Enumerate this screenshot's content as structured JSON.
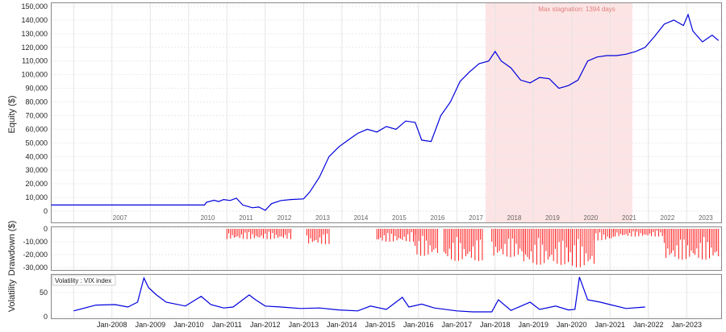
{
  "chart_data": [
    {
      "type": "line",
      "ylabel": "Equity ($)",
      "ylim": [
        0,
        150000
      ],
      "y_ticks": [
        "150,000",
        "140,000",
        "130,000",
        "120,000",
        "110,000",
        "100,000",
        "90,000",
        "80,000",
        "70,000",
        "60,000",
        "50,000",
        "40,000",
        "30,000",
        "20,000",
        "10,000",
        "0"
      ],
      "year_labels": [
        "2007",
        "2010",
        "2011",
        "2012",
        "2013",
        "2014",
        "2015",
        "2016",
        "2017",
        "2018",
        "2019",
        "2020",
        "2021",
        "2022",
        "2023"
      ],
      "annotation": "Max stagnation: 1394 days",
      "stagnation_period": [
        "2017-10-01",
        "2021-08-01"
      ],
      "grid": true,
      "series": [
        {
          "color": "#0000dd",
          "points": [
            [
              "2006-06-01",
              4500
            ],
            [
              "2010-06-01",
              4500
            ],
            [
              "2010-06-20",
              6500
            ],
            [
              "2010-09-01",
              8000
            ],
            [
              "2010-10-15",
              7000
            ],
            [
              "2010-12-01",
              8500
            ],
            [
              "2011-02-01",
              7800
            ],
            [
              "2011-04-01",
              9500
            ],
            [
              "2011-06-01",
              4500
            ],
            [
              "2011-09-01",
              2500
            ],
            [
              "2011-11-01",
              3000
            ],
            [
              "2012-01-01",
              600
            ],
            [
              "2012-03-01",
              5500
            ],
            [
              "2012-06-01",
              7800
            ],
            [
              "2012-09-01",
              8500
            ],
            [
              "2013-01-01",
              9000
            ],
            [
              "2013-03-01",
              14000
            ],
            [
              "2013-06-01",
              25000
            ],
            [
              "2013-09-01",
              40000
            ],
            [
              "2013-12-01",
              47000
            ],
            [
              "2014-03-01",
              52000
            ],
            [
              "2014-06-01",
              57000
            ],
            [
              "2014-09-01",
              60000
            ],
            [
              "2014-12-01",
              58000
            ],
            [
              "2015-03-01",
              62000
            ],
            [
              "2015-06-01",
              60000
            ],
            [
              "2015-09-01",
              66000
            ],
            [
              "2015-12-01",
              65000
            ],
            [
              "2016-02-01",
              52000
            ],
            [
              "2016-05-01",
              51000
            ],
            [
              "2016-08-01",
              70000
            ],
            [
              "2016-11-01",
              80000
            ],
            [
              "2017-02-01",
              95000
            ],
            [
              "2017-05-01",
              102000
            ],
            [
              "2017-08-01",
              108000
            ],
            [
              "2017-11-01",
              110000
            ],
            [
              "2018-01-01",
              117000
            ],
            [
              "2018-03-01",
              110000
            ],
            [
              "2018-06-01",
              105000
            ],
            [
              "2018-09-01",
              96000
            ],
            [
              "2018-12-01",
              94000
            ],
            [
              "2019-03-01",
              98000
            ],
            [
              "2019-06-01",
              97000
            ],
            [
              "2019-09-01",
              90000
            ],
            [
              "2019-12-01",
              92000
            ],
            [
              "2020-03-01",
              96000
            ],
            [
              "2020-06-01",
              110000
            ],
            [
              "2020-09-01",
              113000
            ],
            [
              "2020-12-01",
              114000
            ],
            [
              "2021-03-01",
              114000
            ],
            [
              "2021-06-01",
              115000
            ],
            [
              "2021-09-01",
              117000
            ],
            [
              "2021-12-01",
              120000
            ],
            [
              "2022-03-01",
              128000
            ],
            [
              "2022-06-01",
              137000
            ],
            [
              "2022-09-01",
              140000
            ],
            [
              "2022-12-01",
              136000
            ],
            [
              "2023-01-15",
              144000
            ],
            [
              "2023-03-01",
              132000
            ],
            [
              "2023-06-01",
              124000
            ],
            [
              "2023-09-01",
              129000
            ],
            [
              "2023-11-01",
              125000
            ]
          ]
        }
      ]
    },
    {
      "type": "bar",
      "ylabel": "Drawdown ($)",
      "ylim": [
        -30000,
        0
      ],
      "y_ticks": [
        "0",
        "-10,000",
        "-20,000",
        "-30,000"
      ],
      "grid": true,
      "series": [
        {
          "color": "#ff0000",
          "segments": [
            [
              "2011-01-01",
              "2012-09-01",
              8000
            ],
            [
              "2013-02-01",
              "2013-09-01",
              12000
            ],
            [
              "2014-12-01",
              "2015-12-01",
              10000
            ],
            [
              "2015-12-01",
              "2016-07-01",
              21000
            ],
            [
              "2016-09-01",
              "2017-09-01",
              25000
            ],
            [
              "2017-12-01",
              "2018-10-01",
              22000
            ],
            [
              "2018-10-01",
              "2019-12-01",
              28000
            ],
            [
              "2019-12-01",
              "2020-08-01",
              30000
            ],
            [
              "2020-08-01",
              "2021-02-01",
              9000
            ],
            [
              "2021-02-01",
              "2022-06-01",
              6000
            ],
            [
              "2022-06-01",
              "2023-11-01",
              24000
            ]
          ]
        }
      ]
    },
    {
      "type": "line",
      "ylabel": "Volatility",
      "ylim": [
        0,
        80
      ],
      "y_ticks": [
        "0",
        "50"
      ],
      "legend": "Volatility : VIX index",
      "x_ticks": [
        "Jan-2008",
        "Jan-2009",
        "Jan-2010",
        "Jan-2011",
        "Jan-2012",
        "Jan-2013",
        "Jan-2014",
        "Jan-2015",
        "Jan-2016",
        "Jan-2017",
        "Jan-2018",
        "Jan-2019",
        "Jan-2020",
        "Jan-2021",
        "Jan-2022",
        "Jan-2023"
      ],
      "grid": true,
      "series": [
        {
          "name": "VIX index",
          "color": "#0000dd",
          "points": [
            [
              "2007-01-01",
              12
            ],
            [
              "2007-08-01",
              24
            ],
            [
              "2008-02-01",
              25
            ],
            [
              "2008-06-01",
              20
            ],
            [
              "2008-09-01",
              30
            ],
            [
              "2008-11-01",
              80
            ],
            [
              "2008-12-15",
              60
            ],
            [
              "2009-03-01",
              45
            ],
            [
              "2009-06-01",
              30
            ],
            [
              "2009-12-01",
              22
            ],
            [
              "2010-05-01",
              42
            ],
            [
              "2010-08-01",
              25
            ],
            [
              "2010-12-01",
              18
            ],
            [
              "2011-03-01",
              20
            ],
            [
              "2011-08-01",
              45
            ],
            [
              "2011-10-01",
              35
            ],
            [
              "2012-01-01",
              22
            ],
            [
              "2012-06-01",
              20
            ],
            [
              "2012-12-01",
              17
            ],
            [
              "2013-06-01",
              18
            ],
            [
              "2013-12-01",
              14
            ],
            [
              "2014-06-01",
              12
            ],
            [
              "2014-10-01",
              22
            ],
            [
              "2015-03-01",
              15
            ],
            [
              "2015-08-01",
              40
            ],
            [
              "2015-10-01",
              20
            ],
            [
              "2016-02-01",
              26
            ],
            [
              "2016-06-01",
              18
            ],
            [
              "2017-01-01",
              12
            ],
            [
              "2017-06-01",
              10
            ],
            [
              "2017-12-01",
              10
            ],
            [
              "2018-02-01",
              35
            ],
            [
              "2018-06-01",
              13
            ],
            [
              "2018-12-01",
              30
            ],
            [
              "2019-03-01",
              15
            ],
            [
              "2019-08-01",
              22
            ],
            [
              "2019-12-01",
              14
            ],
            [
              "2020-02-01",
              15
            ],
            [
              "2020-03-15",
              82
            ],
            [
              "2020-06-01",
              35
            ],
            [
              "2020-10-01",
              30
            ],
            [
              "2021-01-01",
              25
            ],
            [
              "2021-06-01",
              17
            ],
            [
              "2021-12-01",
              20
            ]
          ]
        }
      ]
    }
  ]
}
